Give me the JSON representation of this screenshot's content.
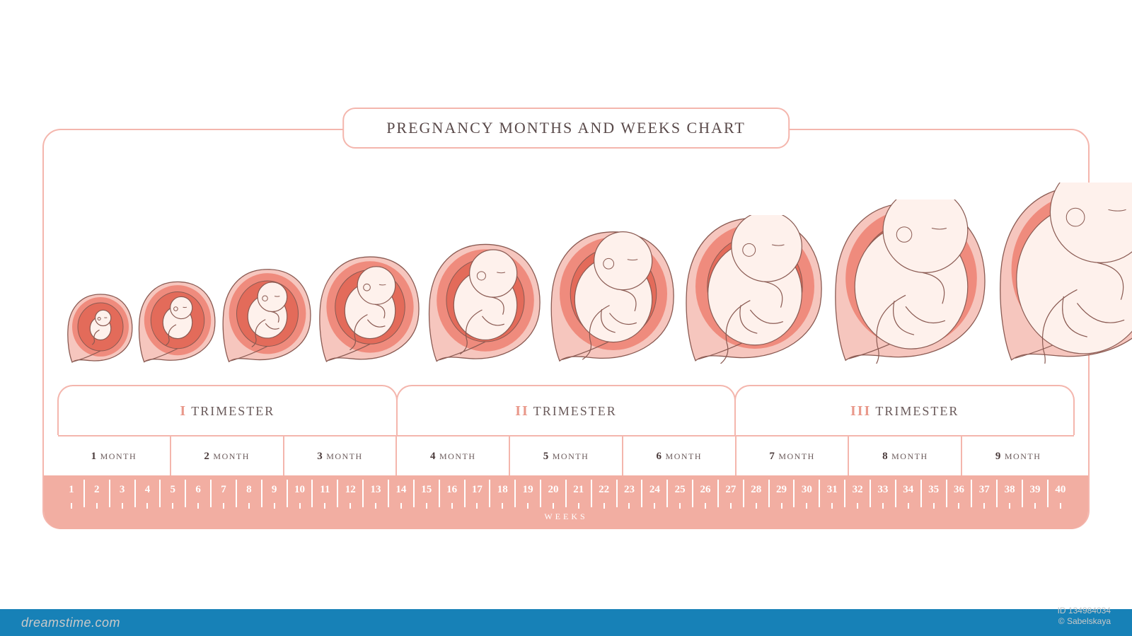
{
  "title": "PREGNANCY MONTHS AND WEEKS CHART",
  "colors": {
    "border": "#f4b6ad",
    "ruler_bg": "#f2aea2",
    "ruler_text": "#ffffff",
    "accent": "#e9988a",
    "text": "#5a4a4a",
    "womb_outer": "#f6c6be",
    "womb_mid": "#ef8b7d",
    "womb_inner": "#e36b5a",
    "fetus_fill": "#fef1ec",
    "fetus_stroke": "#8a5a52",
    "blue_bar": "#1781b7"
  },
  "trimesters": [
    {
      "roman": "I",
      "label": "TRIMESTER"
    },
    {
      "roman": "II",
      "label": "TRIMESTER"
    },
    {
      "roman": "III",
      "label": "TRIMESTER"
    }
  ],
  "months": [
    {
      "num": "1",
      "label": "MONTH"
    },
    {
      "num": "2",
      "label": "MONTH"
    },
    {
      "num": "3",
      "label": "MONTH"
    },
    {
      "num": "4",
      "label": "MONTH"
    },
    {
      "num": "5",
      "label": "MONTH"
    },
    {
      "num": "6",
      "label": "MONTH"
    },
    {
      "num": "7",
      "label": "MONTH"
    },
    {
      "num": "8",
      "label": "MONTH"
    },
    {
      "num": "9",
      "label": "MONTH"
    }
  ],
  "weeks": {
    "start": 1,
    "end": 40,
    "label": "WEEKS"
  },
  "embryos": [
    {
      "month": 1,
      "size": 100
    },
    {
      "month": 2,
      "size": 118
    },
    {
      "month": 3,
      "size": 136
    },
    {
      "month": 4,
      "size": 154
    },
    {
      "month": 5,
      "size": 172
    },
    {
      "month": 6,
      "size": 190
    },
    {
      "month": 7,
      "size": 210
    },
    {
      "month": 8,
      "size": 232
    },
    {
      "month": 9,
      "size": 256
    }
  ],
  "watermark": {
    "site": "dreamstime.com",
    "id": "ID 134984034",
    "author": "© Sabelskaya"
  }
}
